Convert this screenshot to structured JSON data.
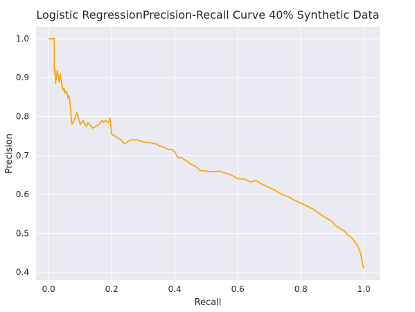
{
  "chart_data": {
    "type": "line",
    "title": "Logistic RegressionPrecision-Recall Curve 40% Synthetic Data",
    "xlabel": "Recall",
    "ylabel": "Precision",
    "xlim": [
      -0.04,
      1.05
    ],
    "ylim": [
      0.38,
      1.03
    ],
    "xticks": [
      0.0,
      0.2,
      0.4,
      0.6,
      0.8,
      1.0
    ],
    "xtick_labels": [
      "0.0",
      "0.2",
      "0.4",
      "0.6",
      "0.8",
      "1.0"
    ],
    "yticks": [
      0.4,
      0.5,
      0.6,
      0.7,
      0.8,
      0.9,
      1.0
    ],
    "ytick_labels": [
      "0.4",
      "0.5",
      "0.6",
      "0.7",
      "0.8",
      "0.9",
      "1.0"
    ],
    "grid": true,
    "legend": false,
    "colors": {
      "line": "#ffa500",
      "plot_background": "#eaeaf2",
      "grid": "#ffffff"
    },
    "series": [
      {
        "x": [
          0.0,
          0.018,
          0.018,
          0.019,
          0.02,
          0.022,
          0.025,
          0.028,
          0.031,
          0.034,
          0.037,
          0.04,
          0.043,
          0.046,
          0.049,
          0.052,
          0.055,
          0.058,
          0.061,
          0.064,
          0.067,
          0.07,
          0.071,
          0.073,
          0.075,
          0.08,
          0.085,
          0.09,
          0.095,
          0.1,
          0.105,
          0.11,
          0.115,
          0.12,
          0.125,
          0.13,
          0.14,
          0.15,
          0.16,
          0.17,
          0.175,
          0.18,
          0.19,
          0.195,
          0.2,
          0.21,
          0.22,
          0.23,
          0.24,
          0.25,
          0.26,
          0.28,
          0.3,
          0.32,
          0.34,
          0.35,
          0.37,
          0.38,
          0.39,
          0.4,
          0.41,
          0.42,
          0.43,
          0.44,
          0.45,
          0.46,
          0.47,
          0.48,
          0.5,
          0.52,
          0.54,
          0.56,
          0.58,
          0.6,
          0.62,
          0.64,
          0.65,
          0.66,
          0.68,
          0.7,
          0.72,
          0.74,
          0.76,
          0.78,
          0.8,
          0.82,
          0.84,
          0.86,
          0.88,
          0.9,
          0.91,
          0.92,
          0.94,
          0.95,
          0.96,
          0.97,
          0.98,
          0.99,
          0.995,
          1.0
        ],
        "y": [
          1.0,
          1.0,
          0.935,
          0.91,
          0.925,
          0.885,
          0.905,
          0.918,
          0.9,
          0.888,
          0.91,
          0.895,
          0.875,
          0.868,
          0.872,
          0.86,
          0.865,
          0.862,
          0.848,
          0.855,
          0.842,
          0.82,
          0.8,
          0.785,
          0.78,
          0.79,
          0.8,
          0.81,
          0.795,
          0.78,
          0.785,
          0.79,
          0.78,
          0.775,
          0.785,
          0.78,
          0.77,
          0.775,
          0.78,
          0.79,
          0.785,
          0.79,
          0.785,
          0.795,
          0.755,
          0.75,
          0.745,
          0.74,
          0.73,
          0.735,
          0.74,
          0.74,
          0.735,
          0.733,
          0.73,
          0.725,
          0.72,
          0.715,
          0.716,
          0.71,
          0.695,
          0.695,
          0.69,
          0.685,
          0.678,
          0.675,
          0.67,
          0.662,
          0.66,
          0.658,
          0.66,
          0.655,
          0.65,
          0.64,
          0.64,
          0.632,
          0.635,
          0.635,
          0.625,
          0.618,
          0.61,
          0.6,
          0.595,
          0.585,
          0.578,
          0.57,
          0.562,
          0.55,
          0.54,
          0.53,
          0.52,
          0.515,
          0.505,
          0.495,
          0.49,
          0.48,
          0.468,
          0.448,
          0.425,
          0.41
        ]
      }
    ]
  }
}
